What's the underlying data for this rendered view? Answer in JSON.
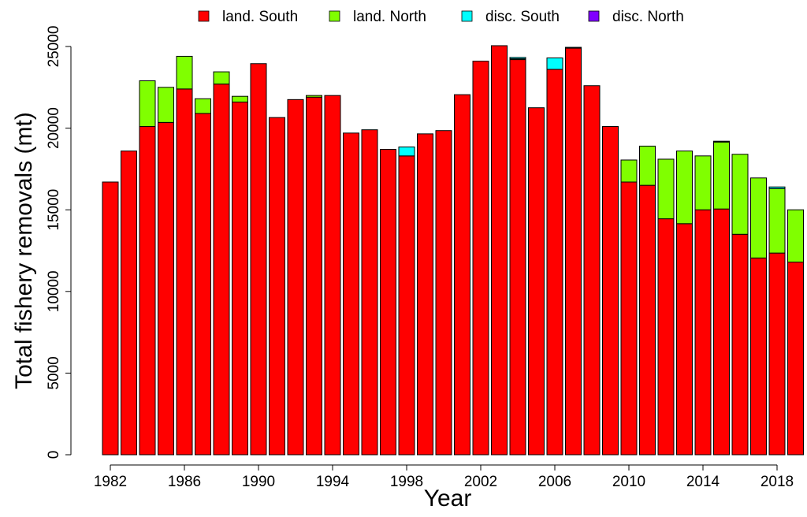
{
  "chart_data": {
    "type": "stacked_bar",
    "x_label": "Year",
    "y_label": "Total fishery removals (mt)",
    "categories": [
      "1982",
      null,
      null,
      null,
      "1986",
      null,
      null,
      null,
      "1990",
      null,
      null,
      null,
      "1994",
      null,
      null,
      null,
      "1998",
      null,
      null,
      null,
      "2002",
      null,
      null,
      null,
      "2006",
      null,
      null,
      null,
      "2010",
      null,
      null,
      null,
      "2014",
      null,
      null,
      null,
      "2018",
      null
    ],
    "series": [
      {
        "name": "land. South",
        "color": "#ff0000",
        "values": [
          16700,
          18600,
          20100,
          20350,
          22400,
          20900,
          22700,
          21600,
          23950,
          20650,
          21750,
          21900,
          22000,
          19700,
          19900,
          18700,
          18300,
          19650,
          19850,
          22050,
          24100,
          25050,
          24200,
          21250,
          23600,
          24900,
          22600,
          20100,
          16700,
          16500,
          14450,
          14150,
          15000,
          15050,
          13500,
          12050,
          12350,
          11800
        ]
      },
      {
        "name": "land. North",
        "color": "#80ff00",
        "values": [
          0,
          0,
          2800,
          2150,
          2000,
          900,
          750,
          350,
          0,
          0,
          0,
          100,
          0,
          0,
          0,
          0,
          0,
          0,
          0,
          0,
          0,
          0,
          50,
          0,
          0,
          0,
          0,
          0,
          1350,
          2400,
          3650,
          4450,
          3300,
          4100,
          4900,
          4900,
          3950,
          3200
        ]
      },
      {
        "name": "disc. South",
        "color": "#00ffff",
        "values": [
          0,
          0,
          0,
          0,
          0,
          0,
          0,
          0,
          0,
          0,
          0,
          0,
          0,
          0,
          0,
          0,
          550,
          0,
          0,
          0,
          0,
          0,
          80,
          0,
          700,
          50,
          0,
          0,
          0,
          0,
          0,
          0,
          0,
          50,
          0,
          0,
          100,
          0
        ]
      },
      {
        "name": "disc. North",
        "color": "#8000ff",
        "values": [
          0,
          0,
          0,
          0,
          0,
          0,
          0,
          0,
          0,
          0,
          0,
          0,
          0,
          0,
          0,
          0,
          0,
          0,
          0,
          0,
          0,
          0,
          0,
          0,
          0,
          0,
          0,
          0,
          0,
          0,
          0,
          0,
          0,
          0,
          0,
          0,
          0,
          0
        ]
      }
    ],
    "ylim": [
      0,
      25000
    ],
    "yticks": [
      0,
      5000,
      10000,
      15000,
      20000,
      25000
    ]
  }
}
